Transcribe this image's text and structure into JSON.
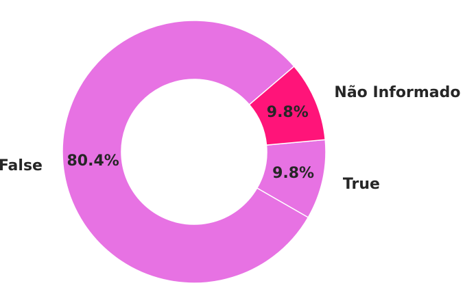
{
  "chart_data": {
    "type": "pie",
    "donut": true,
    "title": "",
    "categories": [
      "False",
      "True",
      "Não Informado"
    ],
    "values": [
      80.4,
      9.8,
      9.8
    ],
    "value_labels": [
      "80.4%",
      "9.8%",
      "9.8%"
    ],
    "colors": [
      "#e772e3",
      "#e772e3",
      "#ff1479"
    ],
    "legend": "none"
  }
}
